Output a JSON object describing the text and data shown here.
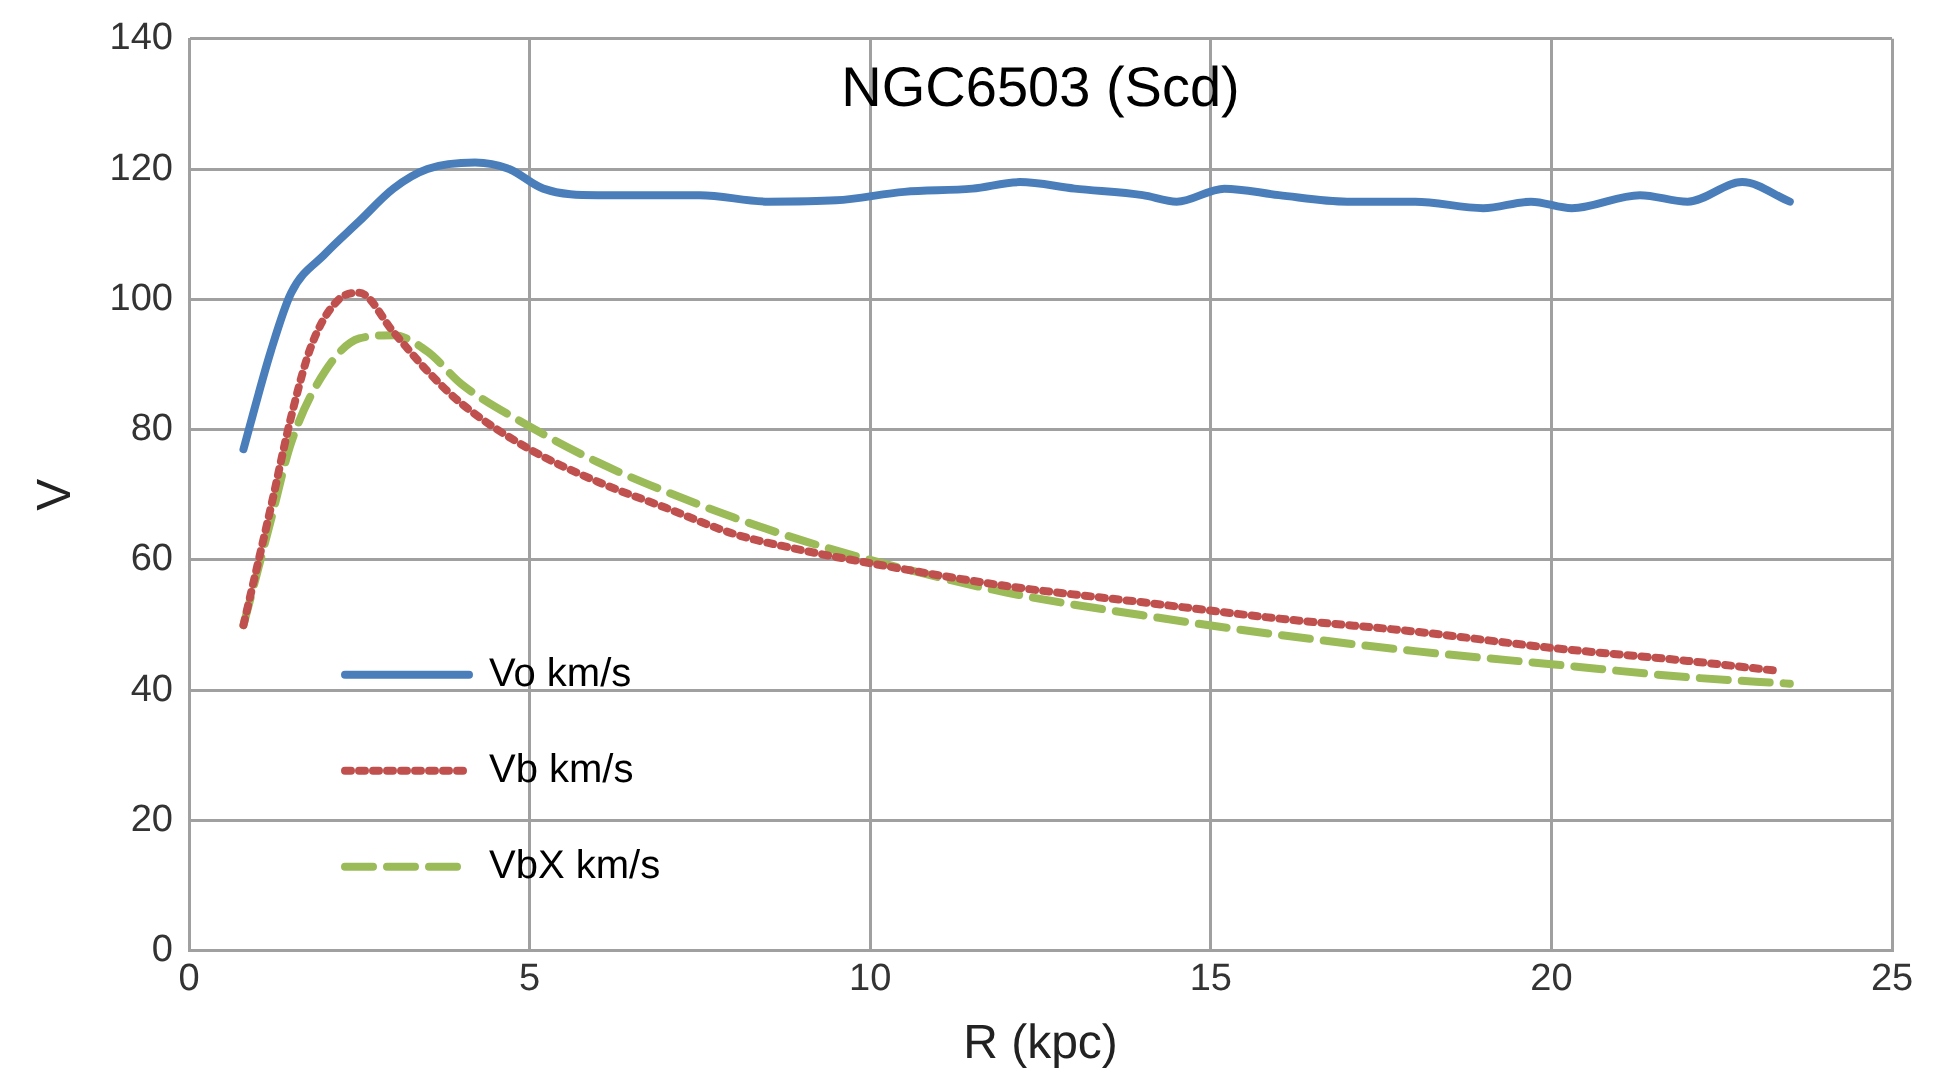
{
  "chart_data": {
    "type": "line",
    "title": "NGC6503 (Scd)",
    "xlabel": "R (kpc)",
    "ylabel": "V",
    "xlim": [
      0,
      25
    ],
    "xticks": [
      0,
      5,
      10,
      15,
      20,
      25
    ],
    "ylim": [
      0,
      140
    ],
    "yticks": [
      0,
      20,
      40,
      60,
      80,
      100,
      120,
      140
    ],
    "grid": true,
    "legend": "bottom left",
    "marker": "none",
    "series": [
      {
        "name": "Vo km/s",
        "color": "#4a7ebb",
        "line_style": "solid",
        "x": [
          0.8,
          1.2,
          1.5,
          2.0,
          2.5,
          3.0,
          3.5,
          4.2,
          4.7,
          5.2,
          6,
          7,
          7.5,
          8.5,
          9.5,
          10.5,
          11.5,
          12.2,
          13,
          14,
          14.5,
          15.2,
          16,
          17,
          18,
          19,
          19.7,
          20.3,
          21.3,
          22,
          22.8,
          23.5
        ],
        "values": [
          77,
          92,
          101,
          107,
          112,
          117,
          120,
          121,
          120,
          117,
          116,
          116,
          116,
          115,
          115.2,
          116.5,
          117,
          118,
          117,
          116,
          115,
          117,
          116,
          115,
          115,
          114,
          115,
          114,
          116,
          115,
          118,
          115
        ]
      },
      {
        "name": "Vb km/s",
        "color": "#c0504d",
        "line_style": "dotted",
        "x": [
          0.8,
          1.2,
          1.5,
          1.8,
          2.2,
          2.5,
          3,
          3.5,
          4,
          5,
          6,
          7,
          8,
          9,
          10,
          12,
          14,
          16,
          18,
          20,
          22,
          23.3
        ],
        "values": [
          50,
          68,
          82,
          93,
          100,
          101,
          95,
          89,
          84,
          77,
          72,
          68,
          64,
          61.5,
          59.5,
          56,
          53.5,
          51,
          49,
          46.5,
          44.5,
          43
        ]
      },
      {
        "name": "VbX km/s",
        "color": "#9bbb59",
        "line_style": "dashed",
        "x": [
          0.8,
          1.2,
          1.5,
          2,
          2.5,
          3,
          3.5,
          4,
          5,
          6,
          7,
          8,
          9,
          10,
          12,
          14,
          16,
          18,
          20,
          22,
          23.5
        ],
        "values": [
          50,
          66,
          78,
          89,
          94,
          94.5,
          92,
          87,
          80.5,
          75,
          70.5,
          66.5,
          63,
          60,
          55,
          51.5,
          48.5,
          46,
          44,
          42,
          41
        ]
      }
    ]
  }
}
